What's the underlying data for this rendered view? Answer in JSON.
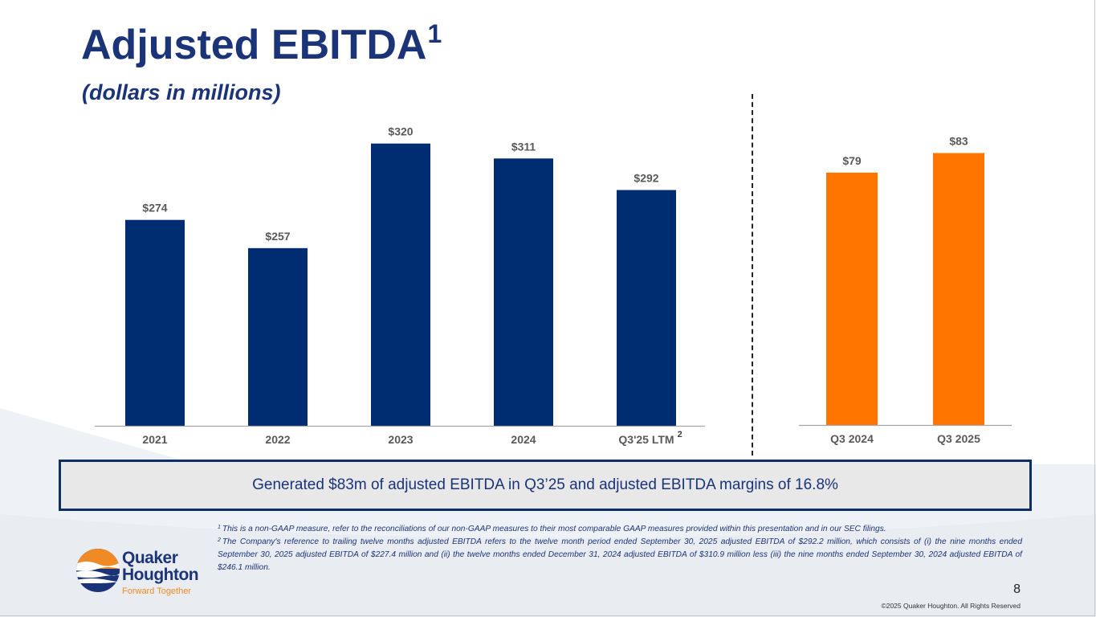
{
  "header": {
    "title": "Adjusted EBITDA",
    "title_footnote_ref": "1",
    "subtitle": "(dollars in millions)"
  },
  "chart_data": [
    {
      "type": "bar",
      "name": "annual-adjusted-ebitda",
      "categories": [
        "2021",
        "2022",
        "2023",
        "2024",
        "Q3'25 LTM"
      ],
      "category_footnotes": [
        "",
        "",
        "",
        "",
        "2"
      ],
      "values": [
        274,
        257,
        320,
        311,
        292
      ],
      "data_labels": [
        "$274",
        "$257",
        "$320",
        "$311",
        "$292"
      ],
      "color": "#002d72",
      "title": "",
      "xlabel": "",
      "ylabel": "",
      "ylim": [
        150,
        330
      ],
      "grid": false,
      "y_axis_visible": false
    },
    {
      "type": "bar",
      "name": "quarterly-adjusted-ebitda",
      "categories": [
        "Q3 2024",
        "Q3 2025"
      ],
      "values": [
        79,
        83
      ],
      "data_labels": [
        "$79",
        "$83"
      ],
      "color": "#ff7500",
      "title": "",
      "xlabel": "",
      "ylabel": "",
      "ylim": [
        27.5,
        88
      ],
      "grid": false,
      "y_axis_visible": false
    }
  ],
  "callout": {
    "text": "Generated $83m of adjusted EBITDA in Q3’25 and adjusted EBITDA margins of 16.8%"
  },
  "footnotes": [
    {
      "ref": "1",
      "text": "This is a non-GAAP measure, refer to the reconciliations of our non-GAAP measures to their most comparable GAAP measures provided within this presentation and in our SEC filings."
    },
    {
      "ref": "2",
      "text": "The Company's reference to trailing twelve months adjusted EBITDA refers to the twelve month period ended September 30, 2025 adjusted EBITDA of $292.2 million, which consists of (i) the nine months ended September 30, 2025 adjusted EBITDA of $227.4 million and (ii) the twelve months ended December 31, 2024 adjusted EBITDA of $310.9 million less (iii) the nine months ended September 30, 2024 adjusted EBITDA of $246.1 million."
    }
  ],
  "logo": {
    "line1": "Quaker",
    "line2": "Houghton",
    "tagline": "Forward Together",
    "colors": {
      "navy": "#1b3478",
      "orange": "#f08a24"
    }
  },
  "footer": {
    "page_number": "8",
    "copyright": "©2025 Quaker Houghton. All Rights Reserved"
  },
  "colors": {
    "brand_navy": "#1b3478",
    "bar_navy": "#002d72",
    "bar_orange": "#ff7500",
    "label_gray": "#595959"
  }
}
